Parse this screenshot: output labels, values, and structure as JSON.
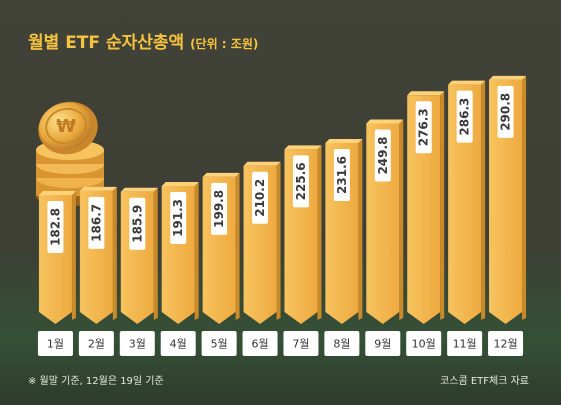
{
  "title": "월별 ETF 순자산총액",
  "unit": "(단위 : 조원)",
  "footnote": "※ 월말 기준, 12월은 19일 기준",
  "source": "코스콤 ETF체크 자료",
  "colors": {
    "bar_front": "#f2b24a",
    "bar_side": "#c98a2a",
    "bar_top": "#ffd27a",
    "label_box": "#ffffff",
    "title": "#f6c33e"
  },
  "icons": [
    "coin-stack-icon"
  ],
  "chart_data": {
    "type": "bar",
    "categories": [
      "1월",
      "2월",
      "3월",
      "4월",
      "5월",
      "6월",
      "7월",
      "8월",
      "9월",
      "10월",
      "11월",
      "12월"
    ],
    "values": [
      182.8,
      186.7,
      185.9,
      191.3,
      199.8,
      210.2,
      225.6,
      231.6,
      249.8,
      276.3,
      286.3,
      290.8
    ],
    "value_labels": [
      "182.8",
      "186.7",
      "185.9",
      "191.3",
      "199.8",
      "210.2",
      "225.6",
      "231.6",
      "249.8",
      "276.3",
      "286.3",
      "290.8"
    ],
    "title": "월별 ETF 순자산총액",
    "xlabel": "",
    "ylabel": "",
    "ylim": [
      150,
      300
    ],
    "grid": false,
    "legend": "none"
  }
}
